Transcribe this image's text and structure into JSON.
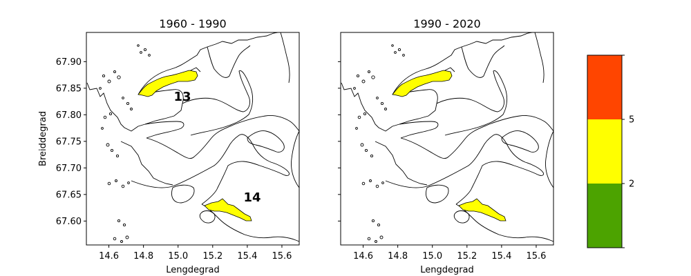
{
  "chart_data": [
    {
      "type": "map",
      "title": "1960 - 1990",
      "xlabel": "Lengdegrad",
      "ylabel": "Breiddegrad",
      "xlim": [
        14.47,
        15.7
      ],
      "ylim": [
        67.555,
        67.955
      ],
      "xticks": [
        14.6,
        14.8,
        15.0,
        15.2,
        15.4,
        15.6
      ],
      "xtick_labels": [
        "14.6",
        "14.8",
        "15.0",
        "15.2",
        "15.4",
        "15.6"
      ],
      "yticks": [
        67.6,
        67.65,
        67.7,
        67.75,
        67.8,
        67.85,
        67.9
      ],
      "ytick_labels": [
        "67.60",
        "67.65",
        "67.70",
        "67.75",
        "67.80",
        "67.85",
        "67.90"
      ],
      "regions": [
        {
          "id": "13",
          "label": "13",
          "class_value": "2-5",
          "color": "#ffff00",
          "label_lon": 15.02,
          "label_lat": 67.823
        },
        {
          "id": "14",
          "label": "14",
          "class_value": "2-5",
          "color": "#ffff00",
          "label_lon": 15.43,
          "label_lat": 67.638
        }
      ]
    },
    {
      "type": "map",
      "title": "1990 - 2020",
      "xlabel": "Lengdegrad",
      "ylabel": "",
      "xlim": [
        14.47,
        15.7
      ],
      "ylim": [
        67.555,
        67.955
      ],
      "xticks": [
        14.6,
        14.8,
        15.0,
        15.2,
        15.4,
        15.6
      ],
      "xtick_labels": [
        "14.6",
        "14.8",
        "15.0",
        "15.2",
        "15.4",
        "15.6"
      ],
      "yticks": [
        67.6,
        67.65,
        67.7,
        67.75,
        67.8,
        67.85,
        67.9
      ],
      "ytick_labels": [],
      "regions": [
        {
          "id": "13",
          "label": "",
          "class_value": "2-5",
          "color": "#ffff00"
        },
        {
          "id": "14",
          "label": "",
          "class_value": "2-5",
          "color": "#ffff00"
        }
      ]
    }
  ],
  "colorbar": {
    "bands": [
      {
        "range": [
          0,
          2
        ],
        "color": "#4ca300"
      },
      {
        "range": [
          2,
          5
        ],
        "color": "#ffff00"
      },
      {
        "range": [
          5,
          10
        ],
        "color": "#ff4500"
      }
    ],
    "tick_labels": [
      "2",
      "5"
    ]
  }
}
